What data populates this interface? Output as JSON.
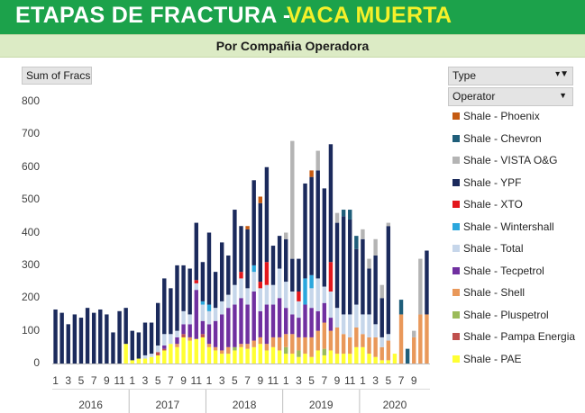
{
  "header": {
    "title_main": "ETAPAS DE FRACTURA -",
    "title_accent": "VACA MUERTA",
    "subtitle": "Por Compañia Operadora"
  },
  "pivot": {
    "value_field": "Sum of Fracs",
    "legend_field": "Type",
    "axis_field": "Operator"
  },
  "colors": {
    "header_green": "#1ca24b",
    "header_accent": "#f5f02a",
    "subheader_bg": "#dcebc5"
  },
  "chart_data": {
    "type": "bar",
    "stacked": true,
    "ylim": [
      0,
      800
    ],
    "yticks": [
      0,
      100,
      200,
      300,
      400,
      500,
      600,
      700,
      800
    ],
    "gridlines": false,
    "legend_position": "right",
    "year_labels": [
      "2016",
      "2017",
      "2018",
      "2019",
      "2020"
    ],
    "month_tick_labels": [
      [
        "1",
        "3",
        "5",
        "7",
        "9",
        "11"
      ],
      [
        "1",
        "3",
        "5",
        "7",
        "9",
        "11"
      ],
      [
        "1",
        "3",
        "5",
        "7",
        "9",
        "11"
      ],
      [
        "1",
        "3",
        "5",
        "7",
        "9",
        "11"
      ],
      [
        "1",
        "3",
        "5",
        "7",
        "9"
      ]
    ],
    "series": [
      {
        "name": "Shale - Phoenix",
        "color": "#c55a11"
      },
      {
        "name": "Shale - Chevron",
        "color": "#1f5e7a"
      },
      {
        "name": "Shale - VISTA O&G",
        "color": "#b4b4b4"
      },
      {
        "name": "Shale - YPF",
        "color": "#1b2a5c"
      },
      {
        "name": "Shale - XTO",
        "color": "#e3171c"
      },
      {
        "name": "Shale - Wintershall",
        "color": "#2ba7dd"
      },
      {
        "name": "Shale - Total",
        "color": "#c6d6ea"
      },
      {
        "name": "Shale - Tecpetrol",
        "color": "#7030a0"
      },
      {
        "name": "Shale - Shell",
        "color": "#e9985a"
      },
      {
        "name": "Shale - Pluspetrol",
        "color": "#9bbb59"
      },
      {
        "name": "Shale - Pampa Energia",
        "color": "#c0504d"
      },
      {
        "name": "Shale - PAE",
        "color": "#ffff33"
      }
    ],
    "months": [
      {
        "PAE": 0,
        "YPF": 165
      },
      {
        "PAE": 0,
        "YPF": 155
      },
      {
        "PAE": 0,
        "YPF": 120
      },
      {
        "PAE": 0,
        "YPF": 150
      },
      {
        "PAE": 0,
        "YPF": 140
      },
      {
        "PAE": 0,
        "YPF": 170
      },
      {
        "PAE": 0,
        "YPF": 155
      },
      {
        "PAE": 0,
        "YPF": 165
      },
      {
        "PAE": 0,
        "YPF": 150
      },
      {
        "PAE": 0,
        "YPF": 95
      },
      {
        "PAE": 0,
        "YPF": 160
      },
      {
        "PAE": 60,
        "YPF": 110
      },
      {
        "PAE": 10,
        "YPF": 90
      },
      {
        "PAE": 15,
        "YPF": 80
      },
      {
        "PAE": 15,
        "Total": 10,
        "YPF": 100
      },
      {
        "PAE": 20,
        "Total": 10,
        "YPF": 95
      },
      {
        "PAE": 25,
        "Pampa Energia": 10,
        "Total": 20,
        "YPF": 130
      },
      {
        "PAE": 40,
        "Pampa Energia": 5,
        "Tecpetrol": 10,
        "Total": 35,
        "YPF": 170
      },
      {
        "PAE": 60,
        "Total": 30,
        "YPF": 140
      },
      {
        "PAE": 50,
        "Shell": 10,
        "Tecpetrol": 20,
        "Total": 20,
        "YPF": 200
      },
      {
        "PAE": 80,
        "Pampa Energia": 10,
        "Tecpetrol": 30,
        "Total": 40,
        "YPF": 140
      },
      {
        "PAE": 70,
        "Shell": 10,
        "Tecpetrol": 40,
        "Total": 30,
        "YPF": 140
      },
      {
        "PAE": 75,
        "Tecpetrol": 150,
        "Total": 20,
        "XTO": 10,
        "YPF": 175
      },
      {
        "PAE": 80,
        "Pampa Energia": 10,
        "Tecpetrol": 40,
        "Total": 50,
        "Wintershall": 10,
        "YPF": 120
      },
      {
        "PAE": 50,
        "Shell": 10,
        "Tecpetrol": 60,
        "Total": 40,
        "Wintershall": 20,
        "YPF": 220
      },
      {
        "PAE": 40,
        "Shell": 10,
        "Tecpetrol": 80,
        "Total": 40,
        "YPF": 110
      },
      {
        "PAE": 30,
        "Shell": 10,
        "Tecpetrol": 110,
        "Total": 40,
        "YPF": 180
      },
      {
        "PAE": 30,
        "Shell": 20,
        "Tecpetrol": 120,
        "Total": 40,
        "YPF": 120
      },
      {
        "PAE": 40,
        "Pluspetrol": 10,
        "Tecpetrol": 130,
        "Total": 60,
        "YPF": 230
      },
      {
        "PAE": 50,
        "Shell": 10,
        "Tecpetrol": 140,
        "Total": 60,
        "XTO": 20,
        "YPF": 140
      },
      {
        "PAE": 45,
        "Shell": 15,
        "Tecpetrol": 120,
        "Total": 50,
        "Phoenix": 10,
        "YPF": 180
      },
      {
        "PAE": 50,
        "Shell": 20,
        "Tecpetrol": 150,
        "Total": 60,
        "Wintershall": 20,
        "YPF": 260
      },
      {
        "PAE": 60,
        "Shell": 20,
        "Tecpetrol": 80,
        "Total": 70,
        "Phoenix": 20,
        "XTO": 20,
        "YPF": 240
      },
      {
        "PAE": 40,
        "Shell": 20,
        "Tecpetrol": 120,
        "Total": 60,
        "XTO": 70,
        "YPF": 290
      },
      {
        "PAE": 50,
        "Shell": 30,
        "Tecpetrol": 100,
        "Total": 60,
        "YPF": 120
      },
      {
        "PAE": 40,
        "Shell": 40,
        "Tecpetrol": 120,
        "Total": 90,
        "YPF": 100
      },
      {
        "PAE": 30,
        "Shell": 40,
        "Pluspetrol": 20,
        "Tecpetrol": 80,
        "Total": 80,
        "VISTA O&G": 20,
        "YPF": 130
      },
      {
        "PAE": 30,
        "Shell": 60,
        "Tecpetrol": 60,
        "Total": 70,
        "VISTA O&G": 360,
        "YPF": 100
      },
      {
        "PAE": 20,
        "Shell": 40,
        "Pluspetrol": 20,
        "Tecpetrol": 60,
        "Total": 50,
        "XTO": 30,
        "YPF": 100
      },
      {
        "PAE": 30,
        "Shell": 50,
        "Tecpetrol": 100,
        "Wintershall": 80,
        "YPF": 290
      },
      {
        "PAE": 20,
        "Shell": 60,
        "Tecpetrol": 90,
        "Total": 60,
        "Wintershall": 40,
        "Phoenix": 20,
        "YPF": 300
      },
      {
        "PAE": 40,
        "Shell": 60,
        "Tecpetrol": 60,
        "Total": 100,
        "VISTA O&G": 60,
        "YPF": 330
      },
      {
        "PAE": 25,
        "Pluspetrol": 20,
        "Shell": 80,
        "Tecpetrol": 60,
        "Total": 50,
        "YPF": 300
      },
      {
        "PAE": 40,
        "Shell": 60,
        "Tecpetrol": 40,
        "Total": 80,
        "XTO": 90,
        "YPF": 360
      },
      {
        "PAE": 30,
        "Shell": 80,
        "Total": 60,
        "VISTA O&G": 30,
        "YPF": 260
      },
      {
        "PAE": 30,
        "Shell": 60,
        "Total": 60,
        "Chevron": 20,
        "YPF": 300
      },
      {
        "PAE": 30,
        "Shell": 50,
        "Total": 70,
        "Chevron": 30,
        "YPF": 290
      },
      {
        "PAE": 50,
        "Shell": 60,
        "Total": 70,
        "Chevron": 40,
        "YPF": 170
      },
      {
        "PAE": 50,
        "Shell": 40,
        "Total": 60,
        "VISTA O&G": 30,
        "YPF": 230
      },
      {
        "PAE": 30,
        "Shell": 50,
        "Total": 70,
        "VISTA O&G": 30,
        "YPF": 140
      },
      {
        "PAE": 20,
        "Shell": 60,
        "Total": 40,
        "VISTA O&G": 50,
        "YPF": 210
      },
      {
        "PAE": 10,
        "Shell": 40,
        "Total": 30,
        "VISTA O&G": 40,
        "YPF": 120
      },
      {
        "PAE": 10,
        "Shell": 60,
        "Total": 20,
        "VISTA O&G": 10,
        "YPF": 330
      },
      {
        "PAE": 30,
        "Shell": 0,
        "Total": 0,
        "VISTA O&G": 0,
        "YPF": 0
      },
      {
        "Shell": 150,
        "Chevron": 45
      },
      {
        "Shell": 0,
        "Chevron": 45
      },
      {
        "Shell": 80,
        "VISTA O&G": 20
      },
      {
        "Shell": 150,
        "VISTA O&G": 170
      },
      {
        "Shell": 150,
        "YPF": 195
      }
    ]
  }
}
